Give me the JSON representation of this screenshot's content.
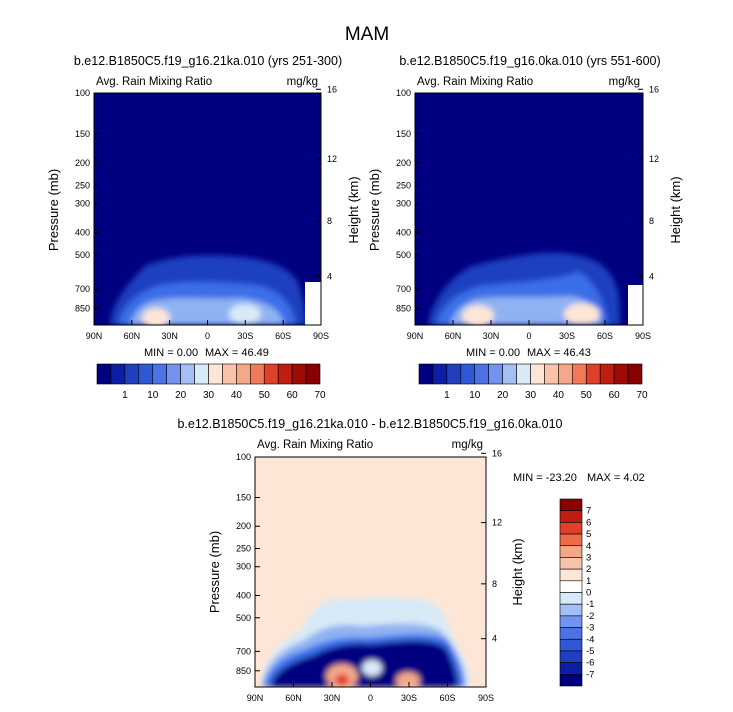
{
  "page": {
    "title": "MAM"
  },
  "colors": {
    "navy": "#000080",
    "blue_dark": "#1f3fbf",
    "blue": "#3a6ee8",
    "blue_light": "#8fb3f2",
    "ice": "#d8eaf8",
    "peach": "#fde6d6",
    "salmon": "#f4a88a",
    "red": "#e0402a",
    "darkred": "#8a0000",
    "frame": "#000000"
  },
  "chart_data": [
    {
      "type": "heatmap",
      "id": "panel-a",
      "title": "b.e12.B1850C5.f19_g16.21ka.010 (yrs 251-300)",
      "left_label": "Avg. Rain Mixing Ratio",
      "right_label": "mg/kg",
      "ylabel": "Pressure (mb)",
      "ylabel_right": "Height (km)",
      "x_ticks": [
        "90N",
        "60N",
        "30N",
        "0",
        "30S",
        "60S",
        "90S"
      ],
      "x_range": [
        90,
        -90
      ],
      "y_ticks": [
        "100",
        "150",
        "200",
        "250",
        "300",
        "400",
        "500",
        "700",
        "850"
      ],
      "y_range": [
        100,
        1000
      ],
      "y_scale": "log",
      "height_ticks": [
        "4",
        "8",
        "12",
        "16"
      ],
      "stats": {
        "min_label": "MIN =",
        "min": "0.00",
        "max_label": "MAX =",
        "max": "46.49"
      },
      "levels": [
        "1",
        "10",
        "20",
        "30",
        "40",
        "50",
        "60",
        "70"
      ],
      "field_peak": 46.49
    },
    {
      "type": "heatmap",
      "id": "panel-b",
      "title": "b.e12.B1850C5.f19_g16.0ka.010 (yrs 551-600)",
      "left_label": "Avg. Rain Mixing Ratio",
      "right_label": "mg/kg",
      "ylabel": "Pressure (mb)",
      "ylabel_right": "Height (km)",
      "x_ticks": [
        "90N",
        "60N",
        "30N",
        "0",
        "30S",
        "60S",
        "90S"
      ],
      "x_range": [
        90,
        -90
      ],
      "y_ticks": [
        "100",
        "150",
        "200",
        "250",
        "300",
        "400",
        "500",
        "700",
        "850"
      ],
      "y_range": [
        100,
        1000
      ],
      "y_scale": "log",
      "height_ticks": [
        "4",
        "8",
        "12",
        "16"
      ],
      "stats": {
        "min_label": "MIN =",
        "min": "0.00",
        "max_label": "MAX =",
        "max": "46.43"
      },
      "levels": [
        "1",
        "10",
        "20",
        "30",
        "40",
        "50",
        "60",
        "70"
      ],
      "field_peak": 46.43
    },
    {
      "type": "heatmap",
      "id": "panel-diff",
      "title": "b.e12.B1850C5.f19_g16.21ka.010 - b.e12.B1850C5.f19_g16.0ka.010",
      "left_label": "Avg. Rain Mixing Ratio",
      "right_label": "mg/kg",
      "ylabel": "Pressure (mb)",
      "ylabel_right": "Height (km)",
      "x_ticks": [
        "90N",
        "60N",
        "30N",
        "0",
        "30S",
        "60S",
        "90S"
      ],
      "x_range": [
        90,
        -90
      ],
      "y_ticks": [
        "100",
        "150",
        "200",
        "250",
        "300",
        "400",
        "500",
        "700",
        "850"
      ],
      "y_range": [
        100,
        1000
      ],
      "y_scale": "log",
      "height_ticks": [
        "4",
        "8",
        "12",
        "16"
      ],
      "stats": {
        "min_label": "MIN =",
        "min": "-23.20",
        "max_label": "MAX =",
        "max": "4.02"
      },
      "levels": [
        "7",
        "6",
        "5",
        "4",
        "3",
        "2",
        "1",
        "0",
        "-1",
        "-2",
        "-3",
        "-4",
        "-5",
        "-6",
        "-7"
      ]
    }
  ]
}
